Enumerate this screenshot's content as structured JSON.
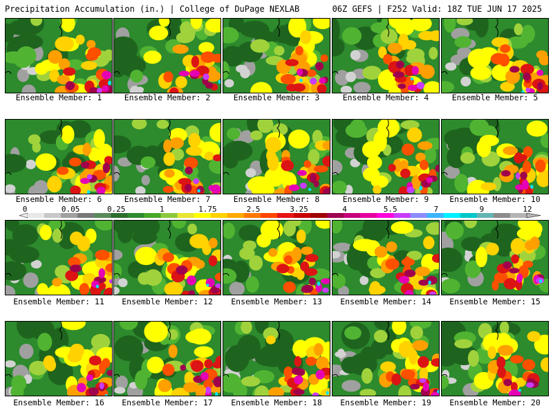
{
  "header": {
    "left": "Precipitation Accumulation (in.) | College of DuPage NEXLAB",
    "right": "06Z GEFS | F252 Valid: 18Z TUE JUN 17 2025"
  },
  "members": [
    {
      "label": "Ensemble Member: 1"
    },
    {
      "label": "Ensemble Member: 2"
    },
    {
      "label": "Ensemble Member: 3"
    },
    {
      "label": "Ensemble Member: 4"
    },
    {
      "label": "Ensemble Member: 5"
    },
    {
      "label": "Ensemble Member: 6"
    },
    {
      "label": "Ensemble Member: 7"
    },
    {
      "label": "Ensemble Member: 8"
    },
    {
      "label": "Ensemble Member: 9"
    },
    {
      "label": "Ensemble Member: 10"
    },
    {
      "label": "Ensemble Member: 11"
    },
    {
      "label": "Ensemble Member: 12"
    },
    {
      "label": "Ensemble Member: 13"
    },
    {
      "label": "Ensemble Member: 14"
    },
    {
      "label": "Ensemble Member: 15"
    },
    {
      "label": "Ensemble Member: 16"
    },
    {
      "label": "Ensemble Member: 17"
    },
    {
      "label": "Ensemble Member: 18"
    },
    {
      "label": "Ensemble Member: 19"
    },
    {
      "label": "Ensemble Member: 20"
    }
  ],
  "colorbar": {
    "labels": [
      "0",
      "0.05",
      "0.25",
      "1",
      "1.75",
      "2.5",
      "3.25",
      "4",
      "5.5",
      "7",
      "9",
      "12"
    ],
    "colors": [
      "#e8e8e8",
      "#c8c8c8",
      "#a0a0a0",
      "#787878",
      "#5a8a5a",
      "#2d6e2d",
      "#2d8a2d",
      "#48a828",
      "#8cc83c",
      "#e6e632",
      "#ffff00",
      "#ffd200",
      "#ffaa00",
      "#ff7800",
      "#ff4600",
      "#e61414",
      "#c80000",
      "#a00000",
      "#a00050",
      "#c80078",
      "#e600a0",
      "#ff00dc",
      "#c83cff",
      "#8c8cff",
      "#3cb4ff",
      "#00f0ff",
      "#00c8c8",
      "#64b4b4",
      "#8c8c8c",
      "#b4b4b4"
    ]
  },
  "palette": {
    "gray_light": "#d2d2d2",
    "gray": "#a0a0a0",
    "gray_dark": "#7a7a7a",
    "green_dark": "#1e641e",
    "green": "#2d8a2d",
    "green_light": "#50b432",
    "lime": "#a0d23c",
    "yellow": "#ffff00",
    "gold": "#ffd200",
    "orange": "#ffa000",
    "red_orange": "#ff5000",
    "red": "#dc1414",
    "dark_red": "#a00000",
    "maroon": "#a0004b",
    "magenta": "#e600b4",
    "purple": "#c83cff",
    "light_blue": "#8cb4ff",
    "cyan": "#00e6ff"
  }
}
